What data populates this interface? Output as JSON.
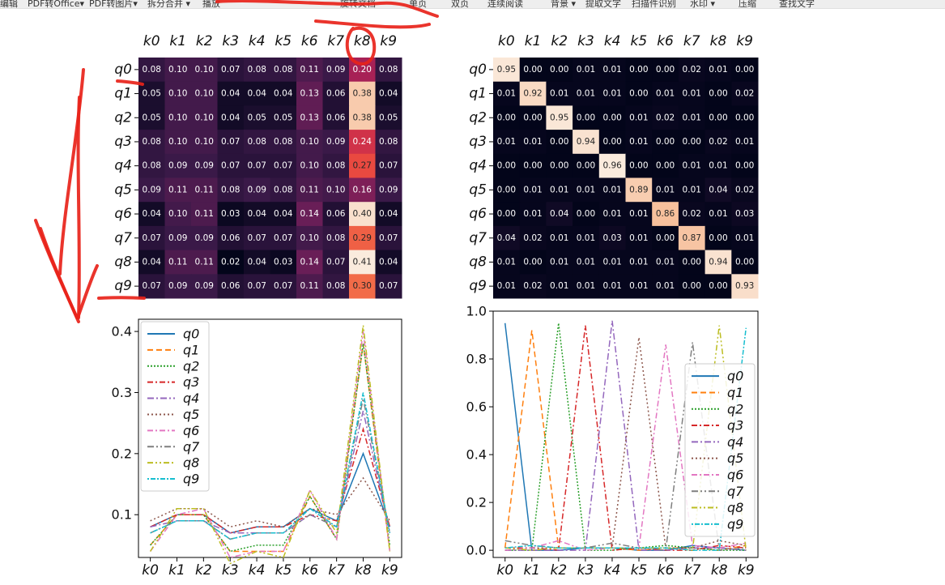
{
  "toolbar": {
    "items": [
      {
        "label": "编辑"
      },
      {
        "label": "PDF转Office▾"
      },
      {
        "label": "PDF转图片▾"
      },
      {
        "label": "拆分合并 ▾"
      },
      {
        "label": "播放"
      },
      {
        "label": "旋转文档"
      },
      {
        "label": "单页"
      },
      {
        "label": "双页"
      },
      {
        "label": "连续阅读"
      },
      {
        "label": "背景 ▾"
      },
      {
        "label": "提取文字"
      },
      {
        "label": "扫描件识别"
      },
      {
        "label": "水印 ▾"
      },
      {
        "label": "压缩"
      },
      {
        "label": "查找文字"
      }
    ]
  },
  "colors": {
    "annotation": "#e8231a",
    "heatmap_low": "#03051a",
    "heatmap_high": "#faebdd"
  },
  "chart_data": [
    {
      "type": "heatmap",
      "colormap": "rocket",
      "x_labels": [
        "k0",
        "k1",
        "k2",
        "k3",
        "k4",
        "k5",
        "k6",
        "k7",
        "k8",
        "k9"
      ],
      "y_labels": [
        "q0",
        "q1",
        "q2",
        "q3",
        "q4",
        "q5",
        "q6",
        "q7",
        "q8",
        "q9"
      ],
      "values": [
        [
          0.08,
          0.1,
          0.1,
          0.07,
          0.08,
          0.08,
          0.11,
          0.09,
          0.2,
          0.08
        ],
        [
          0.05,
          0.1,
          0.1,
          0.04,
          0.04,
          0.04,
          0.13,
          0.06,
          0.38,
          0.04
        ],
        [
          0.05,
          0.1,
          0.1,
          0.04,
          0.05,
          0.05,
          0.13,
          0.06,
          0.38,
          0.05
        ],
        [
          0.08,
          0.1,
          0.1,
          0.07,
          0.08,
          0.08,
          0.1,
          0.09,
          0.24,
          0.08
        ],
        [
          0.08,
          0.09,
          0.09,
          0.07,
          0.07,
          0.07,
          0.1,
          0.08,
          0.27,
          0.07
        ],
        [
          0.09,
          0.11,
          0.11,
          0.08,
          0.09,
          0.08,
          0.11,
          0.1,
          0.16,
          0.09
        ],
        [
          0.04,
          0.1,
          0.11,
          0.03,
          0.04,
          0.04,
          0.14,
          0.06,
          0.4,
          0.04
        ],
        [
          0.07,
          0.09,
          0.09,
          0.06,
          0.07,
          0.07,
          0.1,
          0.08,
          0.29,
          0.07
        ],
        [
          0.04,
          0.11,
          0.11,
          0.02,
          0.04,
          0.03,
          0.14,
          0.07,
          0.41,
          0.04
        ],
        [
          0.07,
          0.09,
          0.09,
          0.06,
          0.07,
          0.07,
          0.11,
          0.08,
          0.3,
          0.07
        ]
      ]
    },
    {
      "type": "heatmap",
      "colormap": "rocket",
      "x_labels": [
        "k0",
        "k1",
        "k2",
        "k3",
        "k4",
        "k5",
        "k6",
        "k7",
        "k8",
        "k9"
      ],
      "y_labels": [
        "q0",
        "q1",
        "q2",
        "q3",
        "q4",
        "q5",
        "q6",
        "q7",
        "q8",
        "q9"
      ],
      "values": [
        [
          0.95,
          0.0,
          0.0,
          0.01,
          0.01,
          0.0,
          0.0,
          0.02,
          0.01,
          0.0
        ],
        [
          0.01,
          0.92,
          0.01,
          0.01,
          0.01,
          0.0,
          0.01,
          0.01,
          0.0,
          0.02
        ],
        [
          0.0,
          0.0,
          0.95,
          0.0,
          0.0,
          0.01,
          0.02,
          0.01,
          0.0,
          0.0
        ],
        [
          0.01,
          0.01,
          0.0,
          0.94,
          0.0,
          0.01,
          0.0,
          0.0,
          0.02,
          0.01
        ],
        [
          0.0,
          0.0,
          0.0,
          0.0,
          0.96,
          0.0,
          0.0,
          0.01,
          0.01,
          0.0
        ],
        [
          0.0,
          0.01,
          0.01,
          0.01,
          0.01,
          0.89,
          0.01,
          0.01,
          0.04,
          0.02
        ],
        [
          0.0,
          0.01,
          0.04,
          0.0,
          0.01,
          0.01,
          0.86,
          0.02,
          0.01,
          0.03
        ],
        [
          0.04,
          0.02,
          0.01,
          0.01,
          0.03,
          0.01,
          0.0,
          0.87,
          0.0,
          0.01
        ],
        [
          0.01,
          0.0,
          0.01,
          0.01,
          0.01,
          0.01,
          0.01,
          0.0,
          0.94,
          0.0
        ],
        [
          0.01,
          0.02,
          0.01,
          0.01,
          0.01,
          0.01,
          0.01,
          0.0,
          0.0,
          0.93
        ]
      ]
    },
    {
      "type": "line",
      "x": [
        "k0",
        "k1",
        "k2",
        "k3",
        "k4",
        "k5",
        "k6",
        "k7",
        "k8",
        "k9"
      ],
      "ylim": [
        0.03,
        0.42
      ],
      "yticks": [
        "0.1",
        "0.2",
        "0.3",
        "0.4"
      ],
      "legend": "top-left",
      "grid": false,
      "series_source": 0,
      "series": [
        {
          "name": "q0",
          "values": [
            0.08,
            0.1,
            0.1,
            0.07,
            0.08,
            0.08,
            0.11,
            0.09,
            0.2,
            0.08
          ]
        },
        {
          "name": "q1",
          "values": [
            0.05,
            0.1,
            0.1,
            0.04,
            0.04,
            0.04,
            0.13,
            0.06,
            0.38,
            0.04
          ]
        },
        {
          "name": "q2",
          "values": [
            0.05,
            0.1,
            0.1,
            0.04,
            0.05,
            0.05,
            0.13,
            0.06,
            0.38,
            0.05
          ]
        },
        {
          "name": "q3",
          "values": [
            0.08,
            0.1,
            0.1,
            0.07,
            0.08,
            0.08,
            0.1,
            0.09,
            0.24,
            0.08
          ]
        },
        {
          "name": "q4",
          "values": [
            0.08,
            0.09,
            0.09,
            0.07,
            0.07,
            0.07,
            0.1,
            0.08,
            0.27,
            0.07
          ]
        },
        {
          "name": "q5",
          "values": [
            0.09,
            0.11,
            0.11,
            0.08,
            0.09,
            0.08,
            0.11,
            0.1,
            0.16,
            0.09
          ]
        },
        {
          "name": "q6",
          "values": [
            0.04,
            0.1,
            0.11,
            0.03,
            0.04,
            0.04,
            0.14,
            0.06,
            0.4,
            0.04
          ]
        },
        {
          "name": "q7",
          "values": [
            0.07,
            0.09,
            0.09,
            0.06,
            0.07,
            0.07,
            0.1,
            0.08,
            0.29,
            0.07
          ]
        },
        {
          "name": "q8",
          "values": [
            0.04,
            0.11,
            0.11,
            0.02,
            0.04,
            0.03,
            0.14,
            0.07,
            0.41,
            0.04
          ]
        },
        {
          "name": "q9",
          "values": [
            0.07,
            0.09,
            0.09,
            0.06,
            0.07,
            0.07,
            0.11,
            0.08,
            0.3,
            0.07
          ]
        }
      ]
    },
    {
      "type": "line",
      "x": [
        "k0",
        "k1",
        "k2",
        "k3",
        "k4",
        "k5",
        "k6",
        "k7",
        "k8",
        "k9"
      ],
      "ylim": [
        -0.03,
        1.0
      ],
      "yticks": [
        "0.0",
        "0.2",
        "0.4",
        "0.6",
        "0.8",
        "1.0"
      ],
      "legend": "right",
      "grid": false,
      "series_source": 1,
      "series": [
        {
          "name": "q0",
          "values": [
            0.95,
            0.0,
            0.0,
            0.01,
            0.01,
            0.0,
            0.0,
            0.02,
            0.01,
            0.0
          ]
        },
        {
          "name": "q1",
          "values": [
            0.01,
            0.92,
            0.01,
            0.01,
            0.01,
            0.0,
            0.01,
            0.01,
            0.0,
            0.02
          ]
        },
        {
          "name": "q2",
          "values": [
            0.0,
            0.0,
            0.95,
            0.0,
            0.0,
            0.01,
            0.02,
            0.01,
            0.0,
            0.0
          ]
        },
        {
          "name": "q3",
          "values": [
            0.01,
            0.01,
            0.0,
            0.94,
            0.0,
            0.01,
            0.0,
            0.0,
            0.02,
            0.01
          ]
        },
        {
          "name": "q4",
          "values": [
            0.0,
            0.0,
            0.0,
            0.0,
            0.96,
            0.0,
            0.0,
            0.01,
            0.01,
            0.0
          ]
        },
        {
          "name": "q5",
          "values": [
            0.0,
            0.01,
            0.01,
            0.01,
            0.01,
            0.89,
            0.01,
            0.01,
            0.04,
            0.02
          ]
        },
        {
          "name": "q6",
          "values": [
            0.0,
            0.01,
            0.04,
            0.0,
            0.01,
            0.01,
            0.86,
            0.02,
            0.01,
            0.03
          ]
        },
        {
          "name": "q7",
          "values": [
            0.04,
            0.02,
            0.01,
            0.01,
            0.03,
            0.01,
            0.0,
            0.87,
            0.0,
            0.01
          ]
        },
        {
          "name": "q8",
          "values": [
            0.01,
            0.0,
            0.01,
            0.01,
            0.01,
            0.01,
            0.01,
            0.0,
            0.94,
            0.0
          ]
        },
        {
          "name": "q9",
          "values": [
            0.01,
            0.02,
            0.01,
            0.01,
            0.01,
            0.01,
            0.01,
            0.0,
            0.0,
            0.93
          ]
        }
      ]
    }
  ]
}
